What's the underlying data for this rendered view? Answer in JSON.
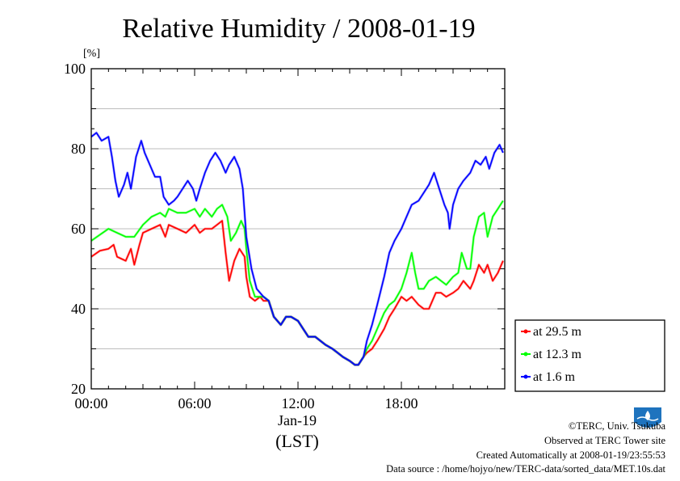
{
  "chart_data": {
    "type": "line",
    "title": "Relative Humidity / 2008-01-19",
    "yunit": "[%]",
    "ylim": [
      20,
      100
    ],
    "yticks": [
      20,
      40,
      60,
      80,
      100
    ],
    "xlim": [
      0,
      24
    ],
    "xticks": [
      {
        "value": 0,
        "label": "00:00"
      },
      {
        "value": 6,
        "label": "06:00"
      },
      {
        "value": 12,
        "label": "12:00"
      },
      {
        "value": 18,
        "label": "18:00"
      }
    ],
    "xdate": "Jan-19",
    "xlabel": "(LST)",
    "grid": true,
    "legend_position": "bottom-right outside",
    "series": [
      {
        "name": "at 29.5 m",
        "color": "#ff0000",
        "points": [
          [
            0,
            53
          ],
          [
            0.5,
            54.5
          ],
          [
            1,
            55
          ],
          [
            1.3,
            56
          ],
          [
            1.5,
            53
          ],
          [
            2,
            52
          ],
          [
            2.3,
            55
          ],
          [
            2.5,
            51
          ],
          [
            2.8,
            56
          ],
          [
            3,
            59
          ],
          [
            3.5,
            60
          ],
          [
            4,
            61
          ],
          [
            4.3,
            58
          ],
          [
            4.5,
            61
          ],
          [
            5,
            60
          ],
          [
            5.5,
            59
          ],
          [
            6,
            61
          ],
          [
            6.3,
            59
          ],
          [
            6.6,
            60
          ],
          [
            7,
            60
          ],
          [
            7.3,
            61
          ],
          [
            7.6,
            62
          ],
          [
            7.8,
            54
          ],
          [
            8,
            47
          ],
          [
            8.3,
            52
          ],
          [
            8.6,
            55
          ],
          [
            8.9,
            53
          ],
          [
            9,
            48
          ],
          [
            9.2,
            43
          ],
          [
            9.5,
            42
          ],
          [
            9.8,
            43
          ],
          [
            10,
            42
          ],
          [
            10.3,
            42
          ],
          [
            10.6,
            38
          ],
          [
            11,
            36
          ],
          [
            11.3,
            38
          ],
          [
            11.6,
            38
          ],
          [
            12,
            37
          ],
          [
            12.3,
            35
          ],
          [
            12.6,
            33
          ],
          [
            13,
            33
          ],
          [
            13.3,
            32
          ],
          [
            13.6,
            31
          ],
          [
            14,
            30
          ],
          [
            14.3,
            29
          ],
          [
            14.6,
            28
          ],
          [
            15,
            27
          ],
          [
            15.3,
            26
          ],
          [
            15.5,
            26
          ],
          [
            15.8,
            28
          ],
          [
            16,
            29
          ],
          [
            16.3,
            30
          ],
          [
            16.6,
            32
          ],
          [
            17,
            35
          ],
          [
            17.3,
            38
          ],
          [
            17.6,
            40
          ],
          [
            18,
            43
          ],
          [
            18.3,
            42
          ],
          [
            18.6,
            43
          ],
          [
            19,
            41
          ],
          [
            19.3,
            40
          ],
          [
            19.6,
            40
          ],
          [
            20,
            44
          ],
          [
            20.3,
            44
          ],
          [
            20.6,
            43
          ],
          [
            21,
            44
          ],
          [
            21.3,
            45
          ],
          [
            21.6,
            47
          ],
          [
            22,
            45
          ],
          [
            22.2,
            47
          ],
          [
            22.5,
            51
          ],
          [
            22.8,
            49
          ],
          [
            23,
            51
          ],
          [
            23.3,
            47
          ],
          [
            23.6,
            49
          ],
          [
            23.9,
            52
          ]
        ]
      },
      {
        "name": "at 12.3 m",
        "color": "#00ff00",
        "points": [
          [
            0,
            57
          ],
          [
            0.5,
            58.5
          ],
          [
            1,
            60
          ],
          [
            1.5,
            59
          ],
          [
            2,
            58
          ],
          [
            2.5,
            58
          ],
          [
            3,
            61
          ],
          [
            3.5,
            63
          ],
          [
            4,
            64
          ],
          [
            4.3,
            63
          ],
          [
            4.5,
            65
          ],
          [
            5,
            64
          ],
          [
            5.5,
            64
          ],
          [
            6,
            65
          ],
          [
            6.3,
            63
          ],
          [
            6.6,
            65
          ],
          [
            7,
            63
          ],
          [
            7.3,
            65
          ],
          [
            7.6,
            66
          ],
          [
            7.9,
            63
          ],
          [
            8.1,
            57
          ],
          [
            8.4,
            59
          ],
          [
            8.7,
            62
          ],
          [
            8.9,
            60
          ],
          [
            9,
            55
          ],
          [
            9.2,
            47
          ],
          [
            9.5,
            43
          ],
          [
            10,
            43
          ],
          [
            10.3,
            42
          ],
          [
            10.6,
            38
          ],
          [
            11,
            36
          ],
          [
            11.3,
            38
          ],
          [
            11.6,
            38
          ],
          [
            12,
            37
          ],
          [
            12.3,
            35
          ],
          [
            12.6,
            33
          ],
          [
            13,
            33
          ],
          [
            13.3,
            32
          ],
          [
            13.6,
            31
          ],
          [
            14,
            30
          ],
          [
            14.3,
            29
          ],
          [
            14.6,
            28
          ],
          [
            15,
            27
          ],
          [
            15.3,
            26
          ],
          [
            15.5,
            26
          ],
          [
            15.8,
            28
          ],
          [
            16,
            30
          ],
          [
            16.3,
            32
          ],
          [
            16.6,
            35
          ],
          [
            17,
            39
          ],
          [
            17.3,
            41
          ],
          [
            17.6,
            42
          ],
          [
            18,
            45
          ],
          [
            18.3,
            49
          ],
          [
            18.6,
            54
          ],
          [
            18.8,
            49
          ],
          [
            19,
            45
          ],
          [
            19.3,
            45
          ],
          [
            19.6,
            47
          ],
          [
            20,
            48
          ],
          [
            20.3,
            47
          ],
          [
            20.6,
            46
          ],
          [
            21,
            48
          ],
          [
            21.3,
            49
          ],
          [
            21.5,
            54
          ],
          [
            21.8,
            50
          ],
          [
            22,
            50
          ],
          [
            22.2,
            58
          ],
          [
            22.5,
            63
          ],
          [
            22.8,
            64
          ],
          [
            23,
            58
          ],
          [
            23.3,
            63
          ],
          [
            23.6,
            65
          ],
          [
            23.9,
            67
          ]
        ]
      },
      {
        "name": "at 1.6 m",
        "color": "#0000ff",
        "points": [
          [
            0,
            83
          ],
          [
            0.3,
            84
          ],
          [
            0.6,
            82
          ],
          [
            1,
            83
          ],
          [
            1.2,
            78
          ],
          [
            1.4,
            72
          ],
          [
            1.6,
            68
          ],
          [
            1.9,
            71
          ],
          [
            2.1,
            74
          ],
          [
            2.3,
            70
          ],
          [
            2.6,
            78
          ],
          [
            2.9,
            82
          ],
          [
            3.1,
            79
          ],
          [
            3.4,
            76
          ],
          [
            3.7,
            73
          ],
          [
            4,
            73
          ],
          [
            4.2,
            68
          ],
          [
            4.5,
            66
          ],
          [
            4.8,
            67
          ],
          [
            5,
            68
          ],
          [
            5.3,
            70
          ],
          [
            5.6,
            72
          ],
          [
            5.9,
            70
          ],
          [
            6.1,
            67
          ],
          [
            6.3,
            70
          ],
          [
            6.6,
            74
          ],
          [
            6.9,
            77
          ],
          [
            7.2,
            79
          ],
          [
            7.5,
            77
          ],
          [
            7.8,
            74
          ],
          [
            8,
            76
          ],
          [
            8.3,
            78
          ],
          [
            8.6,
            75
          ],
          [
            8.8,
            70
          ],
          [
            9,
            58
          ],
          [
            9.3,
            50
          ],
          [
            9.6,
            45
          ],
          [
            10,
            43
          ],
          [
            10.3,
            42
          ],
          [
            10.6,
            38
          ],
          [
            11,
            36
          ],
          [
            11.3,
            38
          ],
          [
            11.6,
            38
          ],
          [
            12,
            37
          ],
          [
            12.3,
            35
          ],
          [
            12.6,
            33
          ],
          [
            13,
            33
          ],
          [
            13.3,
            32
          ],
          [
            13.6,
            31
          ],
          [
            14,
            30
          ],
          [
            14.3,
            29
          ],
          [
            14.6,
            28
          ],
          [
            15,
            27
          ],
          [
            15.3,
            26
          ],
          [
            15.5,
            26
          ],
          [
            15.8,
            28
          ],
          [
            16,
            32
          ],
          [
            16.3,
            36
          ],
          [
            16.6,
            41
          ],
          [
            17,
            48
          ],
          [
            17.3,
            54
          ],
          [
            17.6,
            57
          ],
          [
            18,
            60
          ],
          [
            18.3,
            63
          ],
          [
            18.6,
            66
          ],
          [
            19,
            67
          ],
          [
            19.3,
            69
          ],
          [
            19.6,
            71
          ],
          [
            19.9,
            74
          ],
          [
            20.2,
            70
          ],
          [
            20.5,
            66
          ],
          [
            20.7,
            64
          ],
          [
            20.8,
            60
          ],
          [
            21,
            66
          ],
          [
            21.3,
            70
          ],
          [
            21.6,
            72
          ],
          [
            22,
            74
          ],
          [
            22.3,
            77
          ],
          [
            22.6,
            76
          ],
          [
            22.9,
            78
          ],
          [
            23.1,
            75
          ],
          [
            23.4,
            79
          ],
          [
            23.7,
            81
          ],
          [
            23.9,
            79
          ]
        ]
      }
    ]
  },
  "credits": {
    "copyright": "©TERC, Univ. Tsukuba",
    "site": "Observed at TERC Tower site",
    "created": "Created Automatically at 2008-01-19/23:55:53",
    "source": "Data source : /home/hojyo/new/TERC-data/sorted_data/MET.10s.dat",
    "logo_text": "TERC"
  }
}
